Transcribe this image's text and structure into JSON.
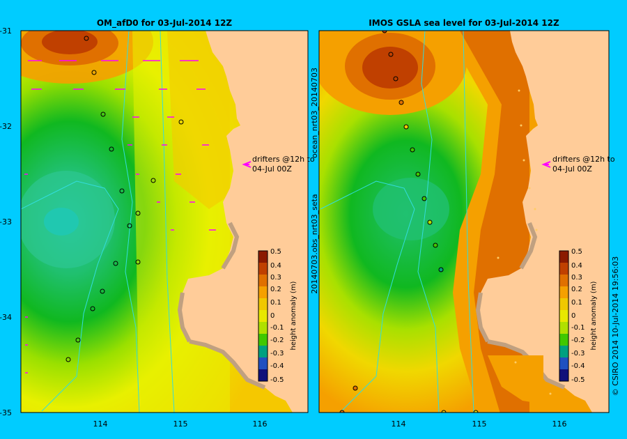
{
  "left_panel": {
    "title": "OM_afD0 for 03-Jul-2014 12Z",
    "drifter_label_line1": "drifters @12h to",
    "drifter_label_line2": "04-Jul 00Z"
  },
  "right_panel": {
    "title": "IMOS GSLA sea level  for 03-Jul-2014 12Z",
    "drifter_label_line1": "drifters @12h to",
    "drifter_label_line2": "04-Jul 00Z",
    "side_label_top": "ocean_nrt03_20140703",
    "side_label_bottom": "20140703.obs_nrt03_seta"
  },
  "lat_ticks": [
    "-31",
    "-32",
    "-33",
    "-34",
    "-35"
  ],
  "lon_ticks": [
    "114",
    "115",
    "116"
  ],
  "colorbar": {
    "label": "height anomaly (m)",
    "ticks": [
      "0.5",
      "0.4",
      "0.3",
      "0.2",
      "0.1",
      "0",
      "-0.1",
      "-0.2",
      "-0.3",
      "-0.4",
      "-0.5"
    ],
    "colors": [
      "#8b1a00",
      "#c04000",
      "#e07000",
      "#f5a000",
      "#f0c800",
      "#e8e800",
      "#b0e000",
      "#40c800",
      "#00a080",
      "#2050c0",
      "#10107a"
    ]
  },
  "credit": "© CSIRO 2014   10-Jul-2014 19:56:03",
  "colors": {
    "background": "#00ccff",
    "land": "#ffcc99",
    "coast_shelf": "#c0a080",
    "drifter_arrow": "#ff00ff"
  }
}
